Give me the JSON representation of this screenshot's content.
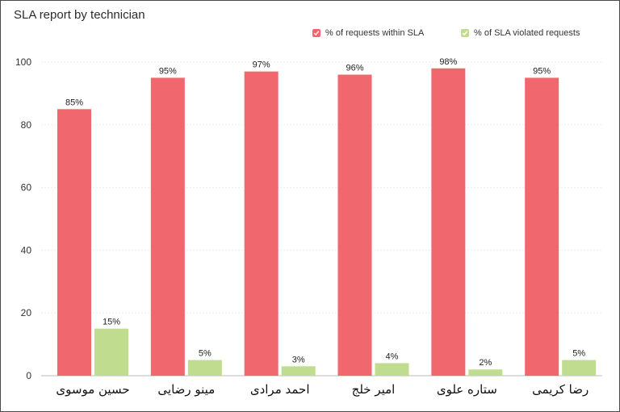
{
  "chart_data": {
    "type": "bar",
    "title": "SLA report by technician",
    "categories": [
      "حسین موسوی",
      "مینو رضایی",
      "احمد مرادی",
      "امیر خلج",
      "ستاره علوی",
      "رضا کریمی"
    ],
    "series": [
      {
        "name": "% of requests within SLA",
        "color": "#f0676d",
        "values": [
          85,
          95,
          97,
          96,
          98,
          95
        ],
        "labels": [
          "85%",
          "95%",
          "97%",
          "96%",
          "98%",
          "95%"
        ]
      },
      {
        "name": "% of SLA violated requests",
        "color": "#bfdc8f",
        "values": [
          15,
          5,
          3,
          4,
          2,
          5
        ],
        "labels": [
          "15%",
          "5%",
          "3%",
          "4%",
          "2%",
          "5%"
        ]
      }
    ],
    "ylim": [
      0,
      100
    ],
    "yticks": [
      0,
      20,
      40,
      60,
      80,
      100
    ],
    "grid": true,
    "legend_position": "top-right"
  }
}
